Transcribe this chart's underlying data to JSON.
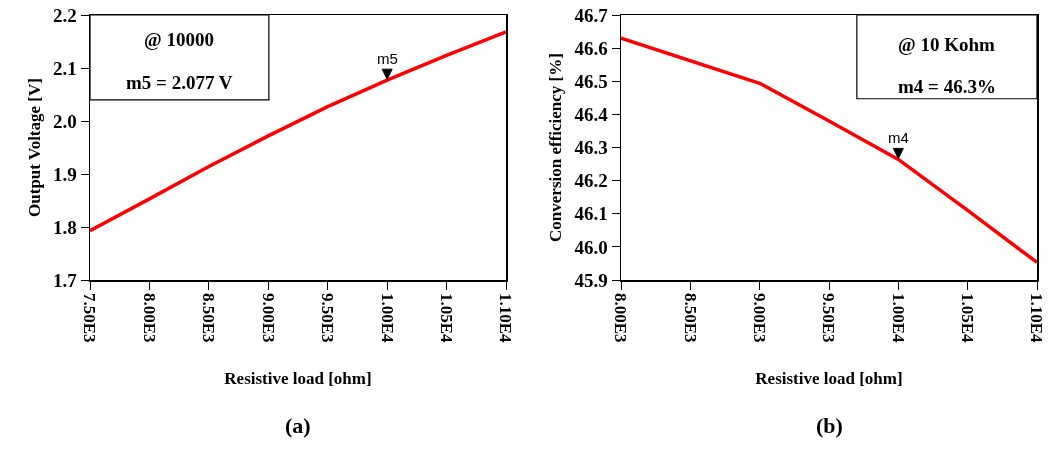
{
  "chart_data": [
    {
      "type": "line",
      "xlabel": "Resistive load [ohm]",
      "ylabel": "Output Voltage [V]",
      "x": [
        7500,
        8000,
        8500,
        9000,
        9500,
        10000,
        10500,
        11000
      ],
      "series": [
        {
          "color": "#ff0000",
          "values": [
            1.793,
            1.853,
            1.914,
            1.972,
            2.027,
            2.077,
            2.124,
            2.168
          ]
        }
      ],
      "xlim": [
        7500,
        11000
      ],
      "xticks": [
        {
          "value": 7500,
          "label": "7.50E3"
        },
        {
          "value": 8000,
          "label": "8.00E3"
        },
        {
          "value": 8500,
          "label": "8.50E3"
        },
        {
          "value": 9000,
          "label": "9.00E3"
        },
        {
          "value": 9500,
          "label": "9.50E3"
        },
        {
          "value": 10000,
          "label": "1.00E4"
        },
        {
          "value": 10500,
          "label": "1.05E4"
        },
        {
          "value": 11000,
          "label": "1.10E4"
        }
      ],
      "ylim": [
        1.7,
        2.2
      ],
      "yticks": [
        {
          "value": 1.7,
          "label": "1.7"
        },
        {
          "value": 1.8,
          "label": "1.8"
        },
        {
          "value": 1.9,
          "label": "1.9"
        },
        {
          "value": 2.0,
          "label": "2.0"
        },
        {
          "value": 2.1,
          "label": "2.1"
        },
        {
          "value": 2.2,
          "label": "2.2"
        }
      ],
      "grid": false,
      "marker": "none",
      "line_style": "solid",
      "annotations": [
        "@ 10000",
        "m5 = 2.077 V",
        {
          "text": "m5",
          "x": 10000,
          "y": 2.077
        },
        "(a)"
      ]
    },
    {
      "type": "line",
      "xlabel": "Resistive load [ohm]",
      "ylabel": "Conversion efficiency [%]",
      "x": [
        8000,
        9000,
        9500,
        10000,
        10500,
        11000
      ],
      "series": [
        {
          "color": "#ff0000",
          "values": [
            46.63,
            46.494,
            46.38,
            46.264,
            46.11,
            45.953
          ]
        }
      ],
      "xlim": [
        8000,
        11000
      ],
      "xticks": [
        {
          "value": 8000,
          "label": "8.00E3"
        },
        {
          "value": 8500,
          "label": "8.50E3"
        },
        {
          "value": 9000,
          "label": "9.00E3"
        },
        {
          "value": 9500,
          "label": "9.50E3"
        },
        {
          "value": 10000,
          "label": "1.00E4"
        },
        {
          "value": 10500,
          "label": "1.05E4"
        },
        {
          "value": 11000,
          "label": "1.10E4"
        }
      ],
      "ylim": [
        45.9,
        46.7
      ],
      "yticks": [
        {
          "value": 45.9,
          "label": "45.9"
        },
        {
          "value": 46.0,
          "label": "46.0"
        },
        {
          "value": 46.1,
          "label": "46.1"
        },
        {
          "value": 46.2,
          "label": "46.2"
        },
        {
          "value": 46.3,
          "label": "46.3"
        },
        {
          "value": 46.4,
          "label": "46.4"
        },
        {
          "value": 46.5,
          "label": "46.5"
        },
        {
          "value": 46.6,
          "label": "46.6"
        },
        {
          "value": 46.7,
          "label": "46.7"
        }
      ],
      "grid": false,
      "marker": "none",
      "line_style": "solid",
      "annotations": [
        "@ 10 Kohm",
        "m4 = 46.3%",
        {
          "text": "m4",
          "x": 10000,
          "y": 46.264
        },
        "(b)"
      ]
    }
  ]
}
